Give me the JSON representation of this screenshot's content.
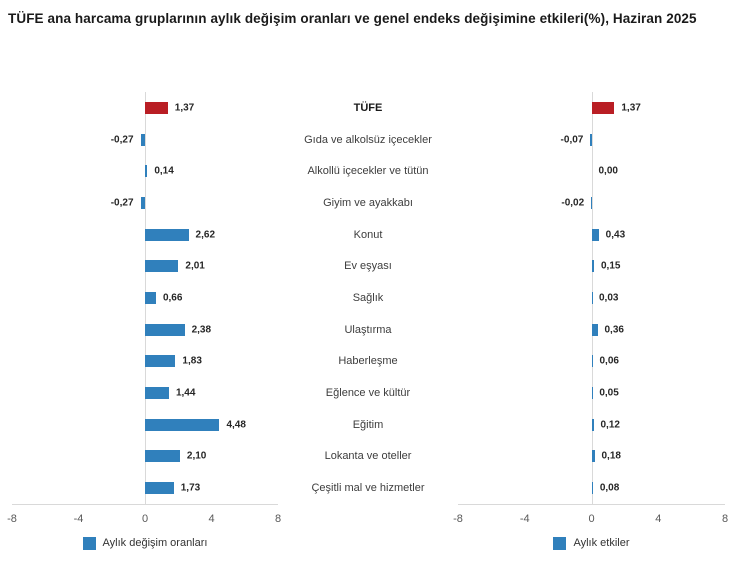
{
  "title": "TÜFE ana harcama gruplarının aylık değişim oranları ve genel endeks değişimine etkileri(%), Haziran 2025",
  "colors": {
    "bar_blue": "#3080BC",
    "bar_red": "#B91E24",
    "axis_line": "#d9d9d9",
    "tick_text": "#595959",
    "value_text": "#262626",
    "category_text": "#3d3d3d"
  },
  "chart_data": [
    {
      "type": "bar",
      "orientation": "horizontal",
      "legend": "Aylık değişim oranları",
      "categories": [
        "TÜFE",
        "Gıda ve alkolsüz içecekler",
        "Alkollü içecekler ve tütün",
        "Giyim ve ayakkabı",
        "Konut",
        "Ev eşyası",
        "Sağlık",
        "Ulaştırma",
        "Haberleşme",
        "Eğlence ve kültür",
        "Eğitim",
        "Lokanta ve oteller",
        "Çeşitli mal ve hizmetler"
      ],
      "values": [
        1.37,
        -0.27,
        0.14,
        -0.27,
        2.62,
        2.01,
        0.66,
        2.38,
        1.83,
        1.44,
        4.48,
        2.1,
        1.73
      ],
      "value_labels": [
        "1,37",
        "-0,27",
        "0,14",
        "-0,27",
        "2,62",
        "2,01",
        "0,66",
        "2,38",
        "1,83",
        "1,44",
        "4,48",
        "2,10",
        "1,73"
      ],
      "highlight_index": 0,
      "xlim": [
        -8,
        8
      ],
      "tick_labels": [
        "-8",
        "-4",
        "0",
        "4",
        "8"
      ],
      "tick_values": [
        -8,
        -4,
        0,
        4,
        8
      ],
      "grid": "zero-line-only",
      "legend_position": "bottom"
    },
    {
      "type": "bar",
      "orientation": "horizontal",
      "legend": "Aylık etkiler",
      "categories": [
        "TÜFE",
        "Gıda ve alkolsüz içecekler",
        "Alkollü içecekler ve tütün",
        "Giyim ve ayakkabı",
        "Konut",
        "Ev eşyası",
        "Sağlık",
        "Ulaştırma",
        "Haberleşme",
        "Eğlence ve kültür",
        "Eğitim",
        "Lokanta ve oteller",
        "Çeşitli mal ve hizmetler"
      ],
      "values": [
        1.37,
        -0.07,
        0.0,
        -0.02,
        0.43,
        0.15,
        0.03,
        0.36,
        0.06,
        0.05,
        0.12,
        0.18,
        0.08
      ],
      "value_labels": [
        "1,37",
        "-0,07",
        "0,00",
        "-0,02",
        "0,43",
        "0,15",
        "0,03",
        "0,36",
        "0,06",
        "0,05",
        "0,12",
        "0,18",
        "0,08"
      ],
      "highlight_index": 0,
      "xlim": [
        -8,
        8
      ],
      "tick_labels": [
        "-8",
        "-4",
        "0",
        "4",
        "8"
      ],
      "tick_values": [
        -8,
        -4,
        0,
        4,
        8
      ],
      "grid": "zero-line-only",
      "legend_position": "bottom"
    }
  ]
}
